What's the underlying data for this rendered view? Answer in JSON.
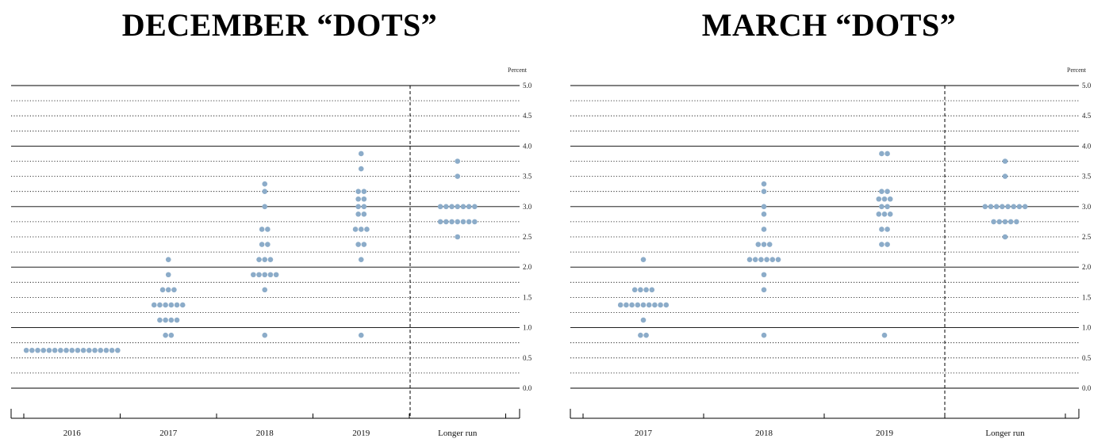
{
  "chart_data": [
    {
      "type": "scatter",
      "title": "DECEMBER “DOTS”",
      "unit_label": "Percent",
      "ylim": [
        0,
        5
      ],
      "yticks": [
        "0.0",
        "0.5",
        "1.0",
        "1.5",
        "2.0",
        "2.5",
        "3.0",
        "3.5",
        "4.0",
        "4.5",
        "5.0"
      ],
      "categories": [
        "2016",
        "2017",
        "2018",
        "2019",
        "Longer run"
      ],
      "divider_after_index": 3,
      "dots_color": "#8cacc9",
      "dots": [
        {
          "category": "2016",
          "values": [
            {
              "y": 0.625,
              "count": 17
            }
          ]
        },
        {
          "category": "2017",
          "values": [
            {
              "y": 0.875,
              "count": 2
            },
            {
              "y": 1.125,
              "count": 4
            },
            {
              "y": 1.375,
              "count": 6
            },
            {
              "y": 1.625,
              "count": 3
            },
            {
              "y": 1.875,
              "count": 1
            },
            {
              "y": 2.125,
              "count": 1
            }
          ]
        },
        {
          "category": "2018",
          "values": [
            {
              "y": 0.875,
              "count": 1
            },
            {
              "y": 1.625,
              "count": 1
            },
            {
              "y": 1.875,
              "count": 5
            },
            {
              "y": 2.125,
              "count": 3
            },
            {
              "y": 2.375,
              "count": 2
            },
            {
              "y": 2.625,
              "count": 2
            },
            {
              "y": 3.0,
              "count": 1
            },
            {
              "y": 3.25,
              "count": 1
            },
            {
              "y": 3.375,
              "count": 1
            }
          ]
        },
        {
          "category": "2019",
          "values": [
            {
              "y": 0.875,
              "count": 1
            },
            {
              "y": 2.125,
              "count": 1
            },
            {
              "y": 2.375,
              "count": 2
            },
            {
              "y": 2.625,
              "count": 3
            },
            {
              "y": 2.875,
              "count": 2
            },
            {
              "y": 3.0,
              "count": 2
            },
            {
              "y": 3.125,
              "count": 2
            },
            {
              "y": 3.25,
              "count": 2
            },
            {
              "y": 3.625,
              "count": 1
            },
            {
              "y": 3.875,
              "count": 1
            }
          ]
        },
        {
          "category": "Longer run",
          "values": [
            {
              "y": 2.5,
              "count": 1
            },
            {
              "y": 2.75,
              "count": 7
            },
            {
              "y": 3.0,
              "count": 7
            },
            {
              "y": 3.5,
              "count": 1
            },
            {
              "y": 3.75,
              "count": 1
            }
          ]
        }
      ]
    },
    {
      "type": "scatter",
      "title": "MARCH “DOTS”",
      "unit_label": "Percent",
      "ylim": [
        0,
        5
      ],
      "yticks": [
        "0.0",
        "0.5",
        "1.0",
        "1.5",
        "2.0",
        "2.5",
        "3.0",
        "3.5",
        "4.0",
        "4.5",
        "5.0"
      ],
      "categories": [
        "2017",
        "2018",
        "2019",
        "Longer run"
      ],
      "divider_after_index": 2,
      "dots_color": "#8cacc9",
      "dots": [
        {
          "category": "2017",
          "values": [
            {
              "y": 0.875,
              "count": 2
            },
            {
              "y": 1.125,
              "count": 1
            },
            {
              "y": 1.375,
              "count": 9
            },
            {
              "y": 1.625,
              "count": 4
            },
            {
              "y": 2.125,
              "count": 1
            }
          ]
        },
        {
          "category": "2018",
          "values": [
            {
              "y": 0.875,
              "count": 1
            },
            {
              "y": 1.625,
              "count": 1
            },
            {
              "y": 1.875,
              "count": 1
            },
            {
              "y": 2.125,
              "count": 6
            },
            {
              "y": 2.375,
              "count": 3
            },
            {
              "y": 2.625,
              "count": 1
            },
            {
              "y": 2.875,
              "count": 1
            },
            {
              "y": 3.0,
              "count": 1
            },
            {
              "y": 3.25,
              "count": 1
            },
            {
              "y": 3.375,
              "count": 1
            }
          ]
        },
        {
          "category": "2019",
          "values": [
            {
              "y": 0.875,
              "count": 1
            },
            {
              "y": 2.375,
              "count": 2
            },
            {
              "y": 2.625,
              "count": 2
            },
            {
              "y": 2.875,
              "count": 3
            },
            {
              "y": 3.0,
              "count": 2
            },
            {
              "y": 3.125,
              "count": 3
            },
            {
              "y": 3.25,
              "count": 2
            },
            {
              "y": 3.875,
              "count": 2
            }
          ]
        },
        {
          "category": "Longer run",
          "values": [
            {
              "y": 2.5,
              "count": 1
            },
            {
              "y": 2.75,
              "count": 5
            },
            {
              "y": 3.0,
              "count": 8
            },
            {
              "y": 3.5,
              "count": 1
            },
            {
              "y": 3.75,
              "count": 1
            }
          ]
        }
      ]
    }
  ]
}
